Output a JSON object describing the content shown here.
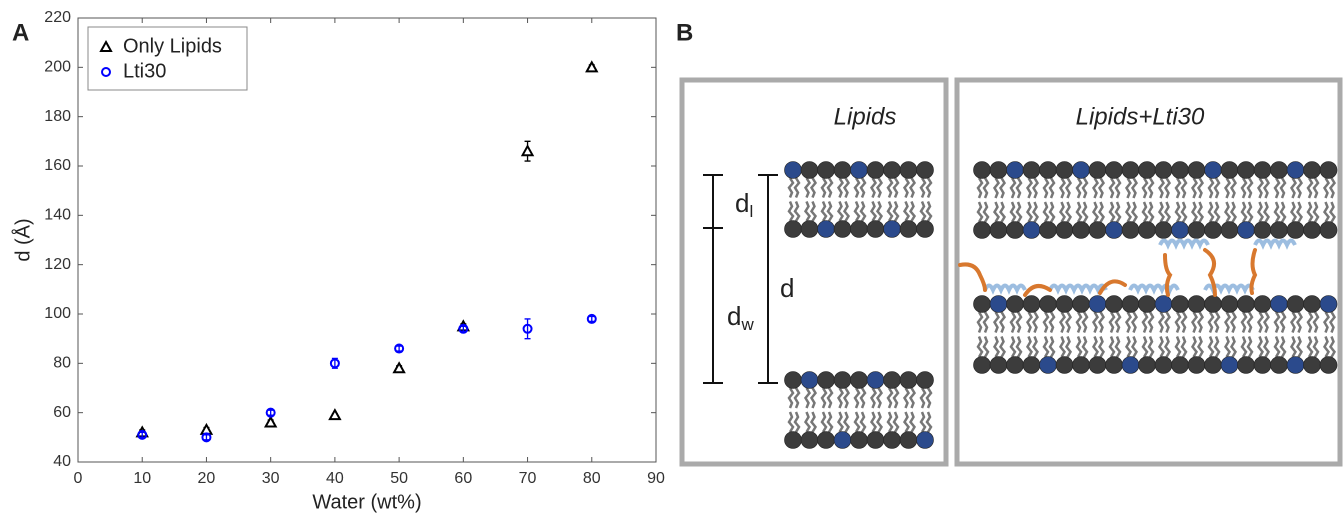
{
  "panel_labels": [
    "A",
    "B"
  ],
  "chart_data": {
    "type": "scatter",
    "x_label": "Water (wt%)",
    "y_label": "d (Å)",
    "x": [
      10,
      20,
      30,
      40,
      50,
      60,
      70,
      80
    ],
    "series": [
      {
        "name": "Only Lipids",
        "color": "#000000",
        "marker": "triangle",
        "values": [
          52,
          53,
          56,
          59,
          78,
          95,
          166,
          200
        ],
        "errors": [
          1,
          1,
          1,
          0.5,
          1,
          1,
          4,
          1
        ]
      },
      {
        "name": "Lti30",
        "color": "#0000ff",
        "marker": "circle",
        "values": [
          51,
          50,
          60,
          80,
          86,
          94,
          94,
          98
        ],
        "errors": [
          1,
          1,
          1,
          2,
          1,
          1,
          4,
          1
        ]
      }
    ],
    "xlim": [
      0,
      90
    ],
    "xticks": [
      0,
      10,
      20,
      30,
      40,
      50,
      60,
      70,
      80,
      90
    ],
    "ylim": [
      40,
      220
    ],
    "yticks": [
      40,
      60,
      80,
      100,
      120,
      140,
      160,
      180,
      200,
      220
    ],
    "grid": false,
    "legend": "upper left"
  },
  "diagram": {
    "left_title": "Lipids",
    "right_title": "Lipids+Lti30",
    "d_l": {
      "base": "d",
      "sub": "l"
    },
    "d_w": {
      "base": "d",
      "sub": "w"
    },
    "d": "d"
  }
}
